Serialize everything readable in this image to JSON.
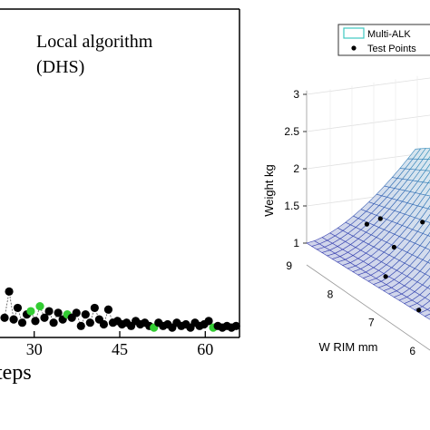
{
  "chart_data": [
    {
      "type": "scatter",
      "title": "Local algorithm (DHS)",
      "title_lines": [
        "Local  algorithm",
        "(DHS)"
      ],
      "xlabel": "teps",
      "x_ticks": [
        "30",
        "45",
        "60"
      ],
      "x_tick_values": [
        30,
        45,
        60
      ],
      "xlim": [
        24,
        66
      ],
      "ylim": [
        0,
        10
      ],
      "colors": {
        "black": "#000000",
        "green": "#33cc33",
        "line": "#555555"
      },
      "series": [
        {
          "points": [
            {
              "x": 24.8,
              "y": 0.6,
              "c": "black"
            },
            {
              "x": 25.6,
              "y": 1.4,
              "c": "black"
            },
            {
              "x": 26.4,
              "y": 0.55,
              "c": "black"
            },
            {
              "x": 27.1,
              "y": 0.9,
              "c": "black"
            },
            {
              "x": 27.9,
              "y": 0.45,
              "c": "black"
            },
            {
              "x": 28.7,
              "y": 0.7,
              "c": "black"
            },
            {
              "x": 29.4,
              "y": 0.8,
              "c": "green"
            },
            {
              "x": 30.2,
              "y": 0.5,
              "c": "black"
            },
            {
              "x": 31,
              "y": 0.95,
              "c": "green"
            },
            {
              "x": 31.8,
              "y": 0.6,
              "c": "black"
            },
            {
              "x": 32.6,
              "y": 0.8,
              "c": "black"
            },
            {
              "x": 33.4,
              "y": 0.45,
              "c": "black"
            },
            {
              "x": 34.2,
              "y": 0.75,
              "c": "black"
            },
            {
              "x": 35,
              "y": 0.55,
              "c": "black"
            },
            {
              "x": 35.8,
              "y": 0.7,
              "c": "green"
            },
            {
              "x": 36.6,
              "y": 0.6,
              "c": "black"
            },
            {
              "x": 37.4,
              "y": 0.75,
              "c": "black"
            },
            {
              "x": 38.2,
              "y": 0.35,
              "c": "black"
            },
            {
              "x": 39,
              "y": 0.7,
              "c": "black"
            },
            {
              "x": 39.8,
              "y": 0.45,
              "c": "black"
            },
            {
              "x": 40.6,
              "y": 0.9,
              "c": "black"
            },
            {
              "x": 41.4,
              "y": 0.55,
              "c": "black"
            },
            {
              "x": 42.2,
              "y": 0.4,
              "c": "black"
            },
            {
              "x": 43,
              "y": 0.85,
              "c": "black"
            },
            {
              "x": 43.8,
              "y": 0.45,
              "c": "black"
            },
            {
              "x": 44.6,
              "y": 0.5,
              "c": "black"
            },
            {
              "x": 45.4,
              "y": 0.4,
              "c": "black"
            },
            {
              "x": 46.2,
              "y": 0.45,
              "c": "black"
            },
            {
              "x": 47,
              "y": 0.35,
              "c": "black"
            },
            {
              "x": 47.8,
              "y": 0.5,
              "c": "black"
            },
            {
              "x": 48.6,
              "y": 0.4,
              "c": "black"
            },
            {
              "x": 49.4,
              "y": 0.45,
              "c": "black"
            },
            {
              "x": 50.2,
              "y": 0.35,
              "c": "black"
            },
            {
              "x": 51,
              "y": 0.3,
              "c": "green"
            },
            {
              "x": 51.8,
              "y": 0.45,
              "c": "black"
            },
            {
              "x": 52.6,
              "y": 0.35,
              "c": "black"
            },
            {
              "x": 53.4,
              "y": 0.4,
              "c": "black"
            },
            {
              "x": 54.2,
              "y": 0.3,
              "c": "black"
            },
            {
              "x": 55,
              "y": 0.45,
              "c": "black"
            },
            {
              "x": 55.8,
              "y": 0.35,
              "c": "black"
            },
            {
              "x": 56.6,
              "y": 0.4,
              "c": "black"
            },
            {
              "x": 57.4,
              "y": 0.3,
              "c": "black"
            },
            {
              "x": 58.2,
              "y": 0.45,
              "c": "black"
            },
            {
              "x": 59,
              "y": 0.35,
              "c": "black"
            },
            {
              "x": 59.8,
              "y": 0.4,
              "c": "black"
            },
            {
              "x": 60.6,
              "y": 0.5,
              "c": "black"
            },
            {
              "x": 61.4,
              "y": 0.3,
              "c": "green"
            },
            {
              "x": 62.2,
              "y": 0.35,
              "c": "black"
            },
            {
              "x": 63,
              "y": 0.3,
              "c": "black"
            },
            {
              "x": 63.8,
              "y": 0.35,
              "c": "black"
            },
            {
              "x": 64.6,
              "y": 0.3,
              "c": "black"
            },
            {
              "x": 65.4,
              "y": 0.35,
              "c": "black"
            }
          ]
        }
      ]
    },
    {
      "type": "surface3d",
      "zlabel": "Weight kg",
      "xlabel": "W RIM mm",
      "z_ticks": [
        "1",
        "1.5",
        "2",
        "2.5",
        "3"
      ],
      "z_tick_values": [
        1,
        1.5,
        2,
        2.5,
        3
      ],
      "x_ticks": [
        "9",
        "8",
        "7",
        "6"
      ],
      "x_tick_values": [
        9,
        8,
        7,
        6
      ],
      "legend": {
        "position": "top-right",
        "entries": [
          "Multi-ALK",
          "Test Points"
        ]
      },
      "colors": {
        "surface_low": "#3b3fb0",
        "surface_high": "#2ec4c0",
        "mesh_fill": "#9fdde0",
        "points": "#000000"
      },
      "test_points": [
        {
          "w": 8.6,
          "z": 1.32
        },
        {
          "w": 8.4,
          "z": 1.46
        },
        {
          "w": 7.9,
          "z": 1.28
        },
        {
          "w": 7.6,
          "z": 1.7
        },
        {
          "w": 7.1,
          "z": 1.78
        },
        {
          "w": 7.8,
          "z": 0.95
        },
        {
          "w": 6.9,
          "z": 0.85
        },
        {
          "w": 6.3,
          "z": 1.08
        }
      ]
    }
  ]
}
